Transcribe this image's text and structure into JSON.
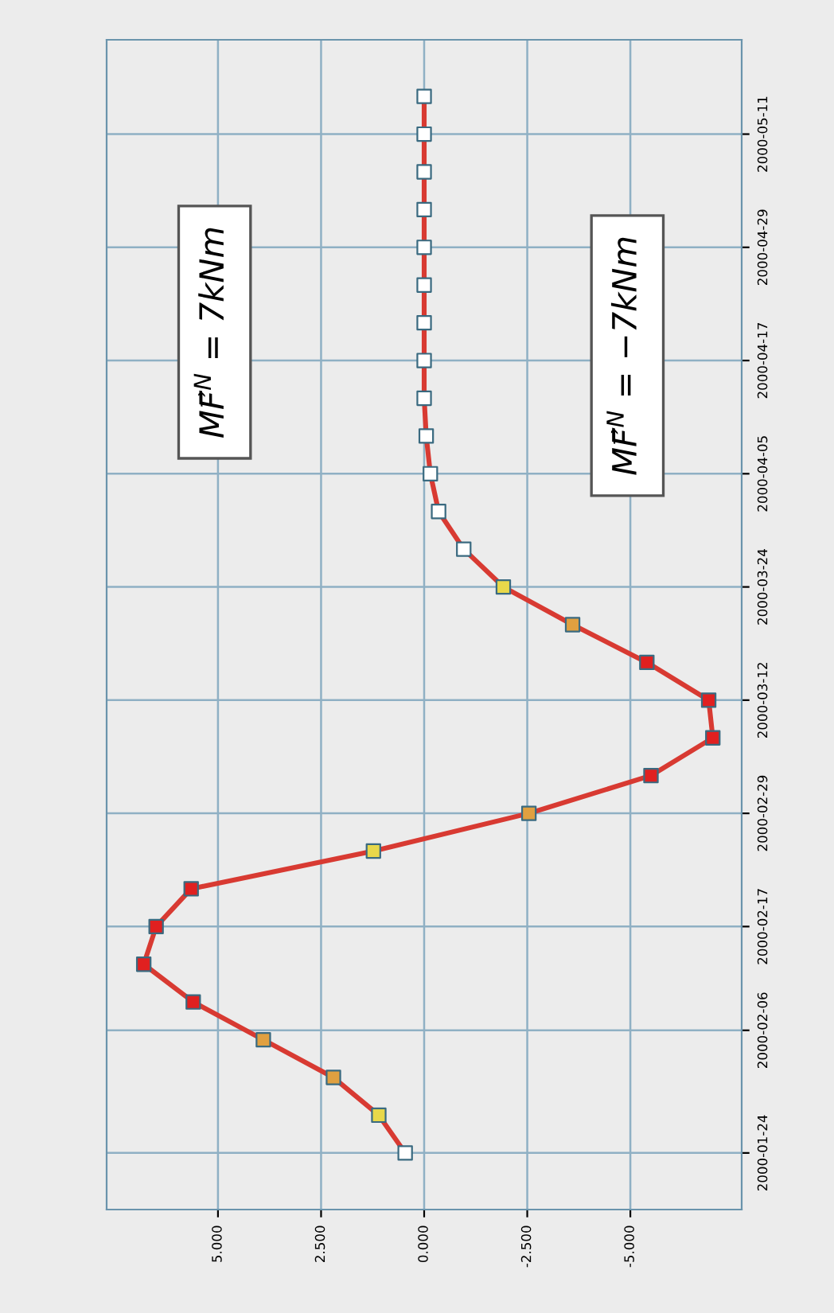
{
  "chart_data": {
    "type": "line",
    "orientation": "horizontal",
    "xlim": [
      7.7,
      -7.7
    ],
    "ylim": [
      "2000-01-18",
      "2000-05-21"
    ],
    "xticks": [
      {
        "value": 5,
        "label": "5.000"
      },
      {
        "value": 2.5,
        "label": "2.500"
      },
      {
        "value": 0,
        "label": "0.000"
      },
      {
        "value": -2.5,
        "label": "-2.500"
      },
      {
        "value": -5,
        "label": "-5.000"
      }
    ],
    "yticks": [
      "2000-01-24",
      "2000-02-06",
      "2000-02-17",
      "2000-02-29",
      "2000-03-12",
      "2000-03-24",
      "2000-04-05",
      "2000-04-17",
      "2000-04-29",
      "2000-05-11"
    ],
    "x": [
      "2000-01-24",
      "2000-01-28",
      "2000-02-01",
      "2000-02-05",
      "2000-02-09",
      "2000-02-13",
      "2000-02-17",
      "2000-02-21",
      "2000-02-25",
      "2000-02-29",
      "2000-03-04",
      "2000-03-08",
      "2000-03-12",
      "2000-03-16",
      "2000-03-20",
      "2000-03-24",
      "2000-03-28",
      "2000-04-01",
      "2000-04-05",
      "2000-04-09",
      "2000-04-13",
      "2000-04-17",
      "2000-04-21",
      "2000-04-25",
      "2000-04-29",
      "2000-05-03",
      "2000-05-07",
      "2000-05-11",
      "2000-05-15"
    ],
    "series": [
      {
        "color": "#d83a32",
        "values": [
          0.46,
          1.1,
          2.2,
          3.9,
          5.6,
          6.8,
          6.5,
          5.65,
          1.23,
          -2.54,
          -5.5,
          -7.0,
          -6.9,
          -5.4,
          -3.6,
          -1.92,
          -0.96,
          -0.35,
          -0.15,
          -0.05,
          0,
          0,
          0,
          0,
          0,
          0,
          0,
          0,
          0
        ],
        "colors": [
          "#ffffff",
          "#e8d84a",
          "#e0a040",
          "#e0a040",
          "#e02020",
          "#e02020",
          "#e02020",
          "#e02020",
          "#e8d84a",
          "#e0a040",
          "#e02020",
          "#e02020",
          "#e02020",
          "#e02020",
          "#e0a040",
          "#e8d84a",
          "#ffffff",
          "#ffffff",
          "#ffffff",
          "#ffffff",
          "#ffffff",
          "#ffffff",
          "#ffffff",
          "#ffffff",
          "#ffffff",
          "#ffffff",
          "#ffffff",
          "#ffffff",
          "#ffffff"
        ]
      }
    ],
    "marker": "square",
    "line_style": "solid",
    "grid": true,
    "annotations": [
      "MF⃗$^{N}$ = 7kNm",
      "MF⃗$^{N}$ = −7kNm"
    ]
  }
}
